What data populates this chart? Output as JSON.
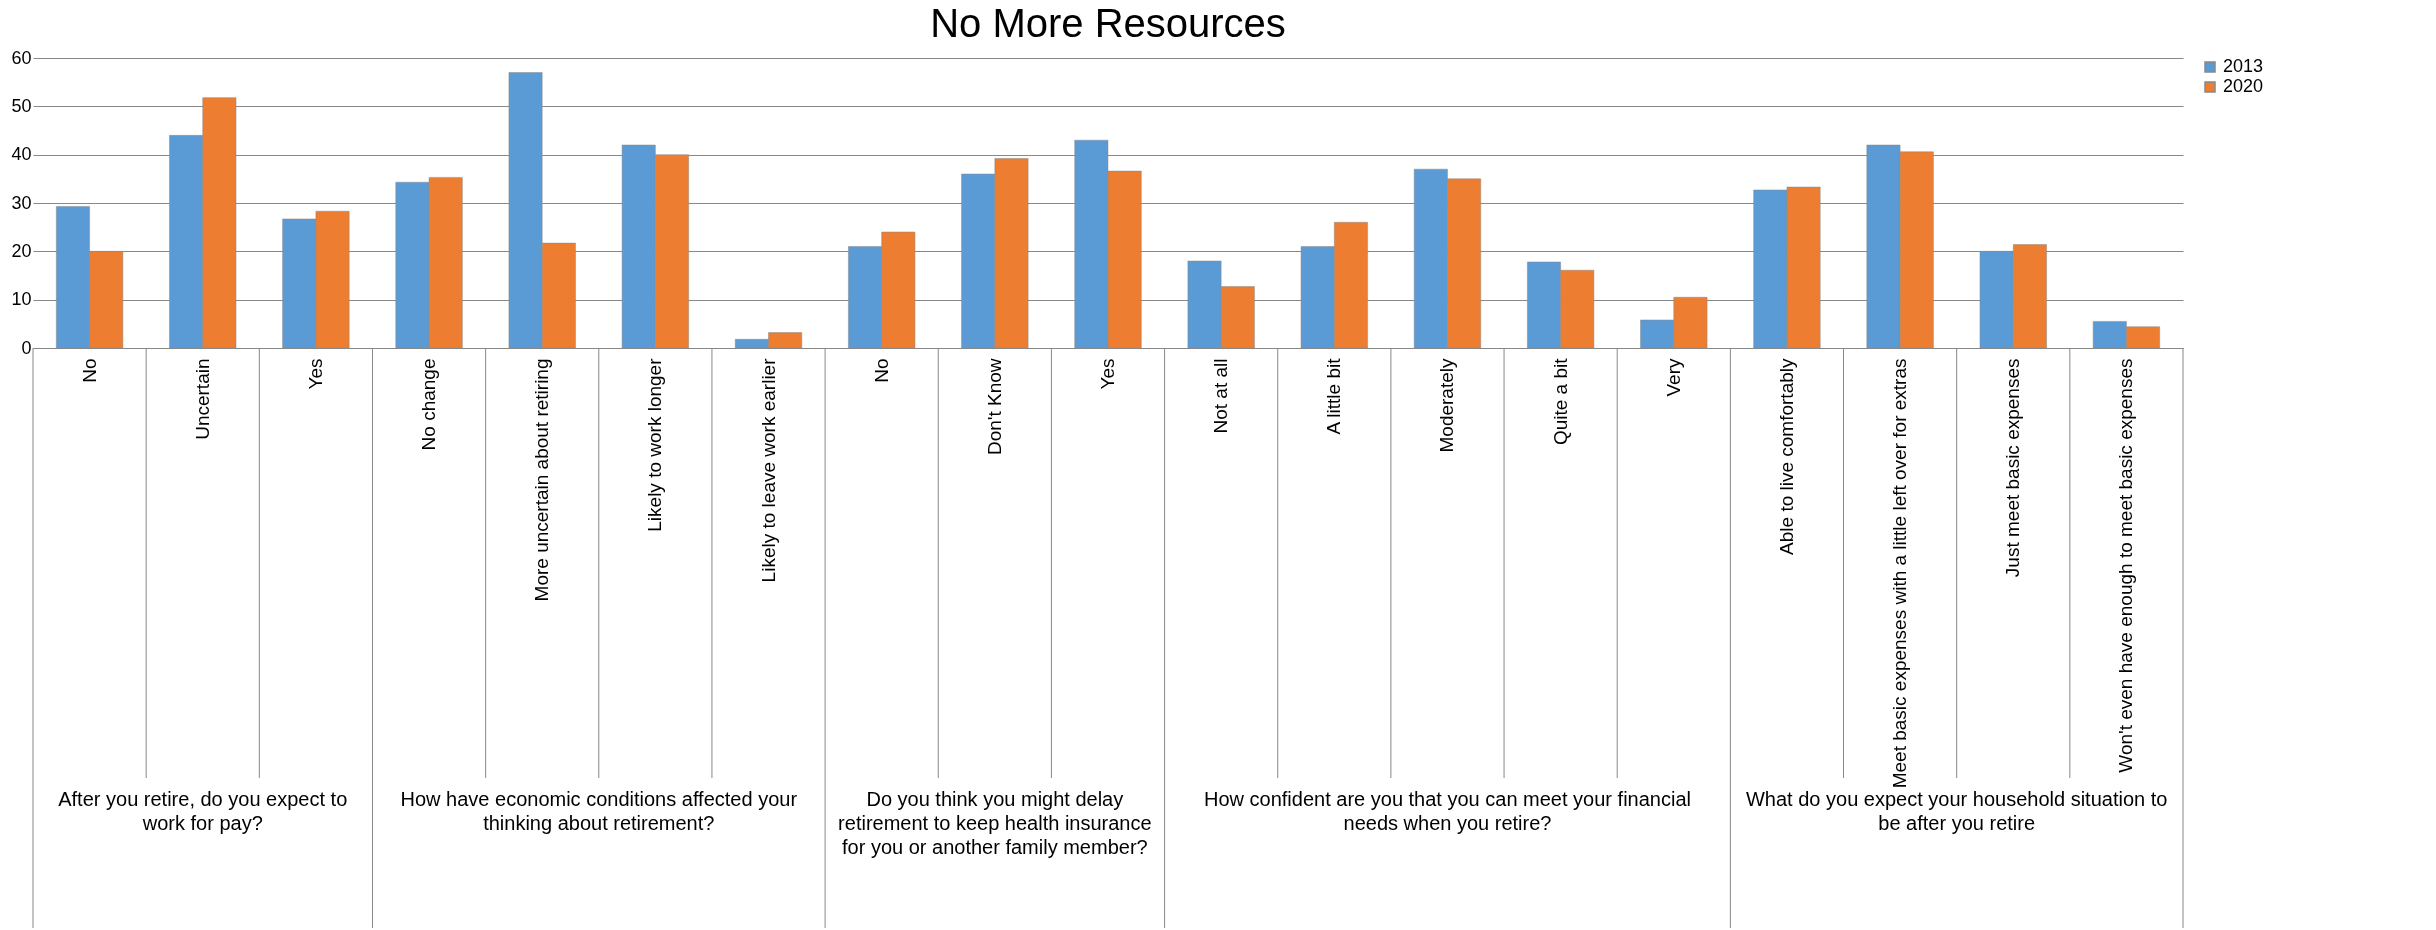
{
  "chart_data": {
    "type": "bar",
    "title": "No More Resources",
    "categories": [
      "No",
      "Uncertain",
      "Yes",
      "No change",
      "More uncertain about retiring",
      "Likely to work longer",
      "Likely to leave work earlier",
      "No",
      "Don't Know",
      "Yes",
      "Not at all",
      "A little bit",
      "Moderately",
      "Quite a bit",
      "Very",
      "Able to live comfortably",
      "Meet basic expenses with a little left over for extras",
      "Just meet basic expenses",
      "Won't even have enough to meet basic expenses"
    ],
    "series": [
      {
        "name": "2013",
        "color": "#5b9bd5",
        "values": [
          29.3,
          44,
          26.7,
          34.3,
          57,
          42,
          1.8,
          21,
          36,
          43,
          18,
          21,
          37,
          17.8,
          5.8,
          32.7,
          42,
          20,
          5.5
        ]
      },
      {
        "name": "2020",
        "color": "#ed7d31",
        "values": [
          20,
          51.8,
          28.3,
          35.3,
          21.7,
          40,
          3.2,
          24,
          39.2,
          36.6,
          12.7,
          26,
          35,
          16.1,
          10.5,
          33.3,
          40.6,
          21.4,
          4.4
        ]
      }
    ],
    "ylim": [
      0,
      60
    ],
    "yticks": [
      0,
      10,
      20,
      30,
      40,
      50,
      60
    ],
    "grid": "y",
    "legend": "right",
    "annotations": [
      "After you retire, do you expect to work for pay?",
      "How have economic conditions affected your thinking about retirement?",
      "Do you think you might delay retirement to keep health insurance for you or another family member?",
      "How confident are you that you can meet your financial needs when you retire?",
      "What do you expect your household situation to be after you retire"
    ]
  }
}
